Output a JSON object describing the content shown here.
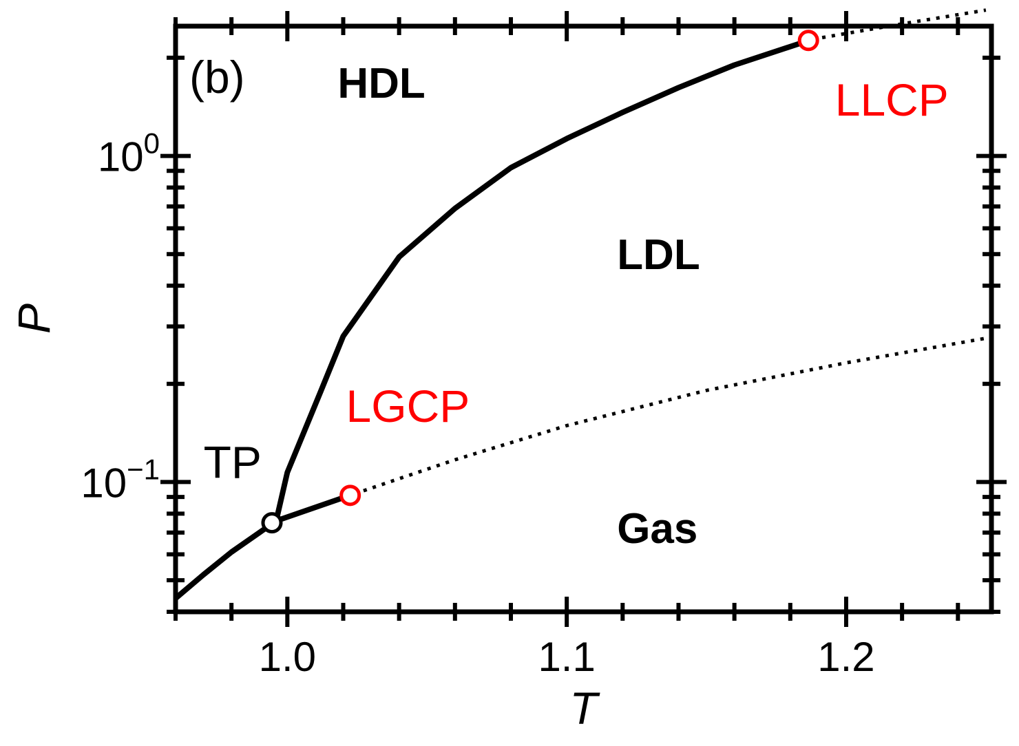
{
  "chart_data": {
    "type": "line",
    "panel_label": "(b)",
    "xlabel": "T",
    "ylabel": "P",
    "y_scale": "log",
    "xlim": [
      0.96,
      1.252
    ],
    "ylim": [
      0.04,
      2.5
    ],
    "x_ticks": [
      {
        "value": 1.0,
        "label": "1.0"
      },
      {
        "value": 1.1,
        "label": "1.1"
      },
      {
        "value": 1.2,
        "label": "1.2"
      }
    ],
    "y_ticks": [
      {
        "value": 1.0,
        "base": "10",
        "exp": "0"
      },
      {
        "value": 0.1,
        "base": "10",
        "exp": "−1"
      }
    ],
    "series": [
      {
        "style": "solid",
        "color": "#000000",
        "x": [
          0.96,
          0.97,
          0.98,
          0.996
        ],
        "y": [
          0.044,
          0.052,
          0.061,
          0.076
        ]
      },
      {
        "style": "solid",
        "color": "#000000",
        "x": [
          0.996,
          1.0,
          1.012,
          1.02,
          1.04,
          1.06,
          1.08,
          1.1,
          1.12,
          1.14,
          1.16,
          1.188
        ],
        "y": [
          0.076,
          0.107,
          0.19,
          0.28,
          0.49,
          0.69,
          0.92,
          1.13,
          1.36,
          1.62,
          1.9,
          2.28
        ]
      },
      {
        "style": "solid",
        "color": "#000000",
        "x": [
          0.996,
          1.024
        ],
        "y": [
          0.076,
          0.092
        ]
      },
      {
        "style": "dotted",
        "color": "#000000",
        "x": [
          1.024,
          1.06,
          1.1,
          1.15,
          1.2,
          1.25
        ],
        "y": [
          0.092,
          0.117,
          0.149,
          0.191,
          0.232,
          0.276
        ]
      },
      {
        "style": "dotted",
        "color": "#000000",
        "x": [
          1.188,
          1.22,
          1.25
        ],
        "y": [
          2.28,
          2.54,
          2.8
        ]
      }
    ],
    "points": [
      {
        "name": "TP",
        "x": 0.9945,
        "y": 0.075,
        "color": "#000000"
      },
      {
        "name": "LGCP",
        "x": 1.0225,
        "y": 0.091,
        "color": "#ff0000"
      },
      {
        "name": "LLCP",
        "x": 1.1865,
        "y": 2.26,
        "color": "#ff0000"
      }
    ],
    "annotations": [
      {
        "text": "TP",
        "x": 0.97,
        "y": 0.103,
        "color": "#000000",
        "bold": false
      },
      {
        "text": "LGCP",
        "x": 1.021,
        "y": 0.153,
        "color": "#ff0000",
        "bold": false
      },
      {
        "text": "LLCP",
        "x": 1.196,
        "y": 1.33,
        "color": "#ff0000",
        "bold": false
      },
      {
        "text": "HDL",
        "x": 1.018,
        "y": 1.51,
        "color": "#000000",
        "bold": true
      },
      {
        "text": "LDL",
        "x": 1.118,
        "y": 0.45,
        "color": "#000000",
        "bold": true
      },
      {
        "text": "Gas",
        "x": 1.118,
        "y": 0.065,
        "color": "#000000",
        "bold": true
      }
    ],
    "grid": false
  }
}
